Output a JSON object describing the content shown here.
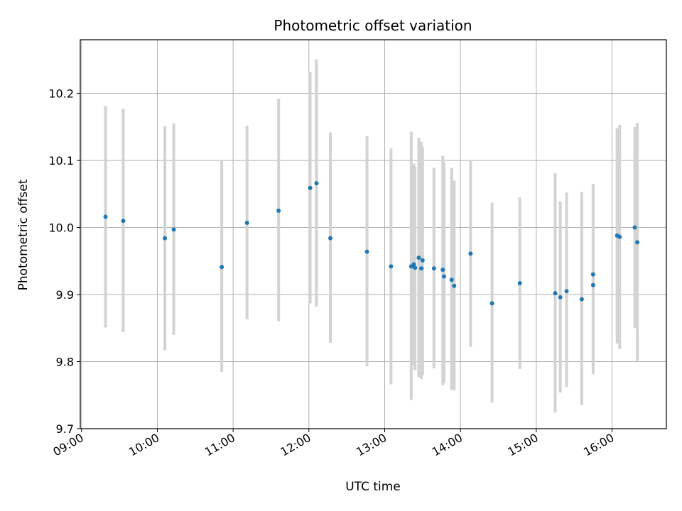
{
  "chart_data": {
    "type": "scatter",
    "title": "Photometric offset variation",
    "xlabel": "UTC time",
    "ylabel": "Photometric offset",
    "x_type": "time",
    "xlim": [
      "08:59",
      "16:43"
    ],
    "ylim": [
      9.7,
      10.28
    ],
    "x_ticks": [
      "09:00",
      "10:00",
      "11:00",
      "12:00",
      "13:00",
      "14:00",
      "15:00",
      "16:00"
    ],
    "y_ticks": [
      "9.7",
      "9.8",
      "9.9",
      "10.0",
      "10.1",
      "10.2"
    ],
    "grid": true,
    "legend": "none",
    "colors": {
      "points": "#1f77b4",
      "error_bars": "#d3d3d3",
      "grid": "#b0b0b0",
      "axes": "#000000"
    },
    "series": [
      {
        "points": [
          {
            "x": "09:19",
            "y": 10.016,
            "ylow": 9.851,
            "yhigh": 10.181
          },
          {
            "x": "09:33",
            "y": 10.01,
            "ylow": 9.844,
            "yhigh": 10.177
          },
          {
            "x": "10:06",
            "y": 9.984,
            "ylow": 9.817,
            "yhigh": 10.151
          },
          {
            "x": "10:13",
            "y": 9.997,
            "ylow": 9.84,
            "yhigh": 10.155
          },
          {
            "x": "10:51",
            "y": 9.941,
            "ylow": 9.785,
            "yhigh": 10.1
          },
          {
            "x": "11:11",
            "y": 10.007,
            "ylow": 9.863,
            "yhigh": 10.152
          },
          {
            "x": "11:36",
            "y": 10.025,
            "ylow": 9.86,
            "yhigh": 10.192
          },
          {
            "x": "12:01",
            "y": 10.059,
            "ylow": 9.887,
            "yhigh": 10.232
          },
          {
            "x": "12:06",
            "y": 10.066,
            "ylow": 9.882,
            "yhigh": 10.251
          },
          {
            "x": "12:17",
            "y": 9.984,
            "ylow": 9.828,
            "yhigh": 10.142
          },
          {
            "x": "12:46",
            "y": 9.964,
            "ylow": 9.793,
            "yhigh": 10.136
          },
          {
            "x": "13:05",
            "y": 9.942,
            "ylow": 9.766,
            "yhigh": 10.118
          },
          {
            "x": "13:21",
            "y": 9.942,
            "ylow": 9.743,
            "yhigh": 10.143
          },
          {
            "x": "13:23",
            "y": 9.945,
            "ylow": 9.795,
            "yhigh": 10.095
          },
          {
            "x": "13:24",
            "y": 9.94,
            "ylow": 9.787,
            "yhigh": 10.091
          },
          {
            "x": "13:27",
            "y": 9.955,
            "ylow": 9.777,
            "yhigh": 10.134
          },
          {
            "x": "13:29",
            "y": 9.939,
            "ylow": 9.774,
            "yhigh": 10.128
          },
          {
            "x": "13:30",
            "y": 9.951,
            "ylow": 9.78,
            "yhigh": 10.12
          },
          {
            "x": "13:39",
            "y": 9.939,
            "ylow": 9.79,
            "yhigh": 10.089
          },
          {
            "x": "13:46",
            "y": 9.937,
            "ylow": 9.765,
            "yhigh": 10.107
          },
          {
            "x": "13:47",
            "y": 9.927,
            "ylow": 9.768,
            "yhigh": 10.097
          },
          {
            "x": "13:53",
            "y": 9.922,
            "ylow": 9.758,
            "yhigh": 10.089
          },
          {
            "x": "13:55",
            "y": 9.913,
            "ylow": 9.757,
            "yhigh": 10.07
          },
          {
            "x": "14:08",
            "y": 9.961,
            "ylow": 9.822,
            "yhigh": 10.101
          },
          {
            "x": "14:25",
            "y": 9.887,
            "ylow": 9.739,
            "yhigh": 10.037
          },
          {
            "x": "14:47",
            "y": 9.917,
            "ylow": 9.789,
            "yhigh": 10.045
          },
          {
            "x": "15:15",
            "y": 9.902,
            "ylow": 9.724,
            "yhigh": 10.081
          },
          {
            "x": "15:19",
            "y": 9.896,
            "ylow": 9.754,
            "yhigh": 10.039
          },
          {
            "x": "15:24",
            "y": 9.905,
            "ylow": 9.762,
            "yhigh": 10.052
          },
          {
            "x": "15:36",
            "y": 9.893,
            "ylow": 9.735,
            "yhigh": 10.053
          },
          {
            "x": "15:45",
            "y": 9.93,
            "ylow": 9.796,
            "yhigh": 10.065
          },
          {
            "x": "15:45",
            "y": 9.914,
            "ylow": 9.781,
            "yhigh": 10.062
          },
          {
            "x": "16:04",
            "y": 9.988,
            "ylow": 9.827,
            "yhigh": 10.148
          },
          {
            "x": "16:06",
            "y": 9.986,
            "ylow": 9.819,
            "yhigh": 10.153
          },
          {
            "x": "16:18",
            "y": 10.0,
            "ylow": 9.85,
            "yhigh": 10.15
          },
          {
            "x": "16:20",
            "y": 9.978,
            "ylow": 9.801,
            "yhigh": 10.156
          }
        ]
      }
    ]
  }
}
